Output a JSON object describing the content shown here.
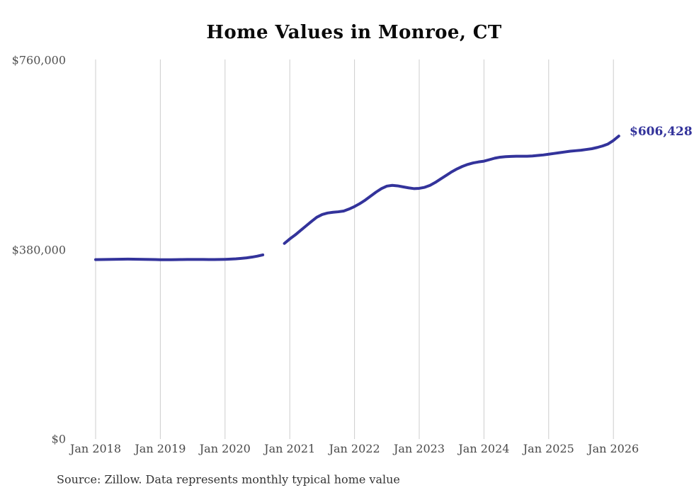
{
  "chart_data": {
    "type": "line",
    "title": "Home Values in Monroe, CT",
    "source_note": "Source: Zillow. Data represents monthly typical home value",
    "end_label": "$606,428",
    "end_value": 606428,
    "line_color": "#33339b",
    "grid_color": "#cccccc",
    "background_color": "#ffffff",
    "ylim": [
      0,
      760000
    ],
    "grid": "vertical-only",
    "legend_position": "none",
    "y_ticks": [
      {
        "label": "$760,000",
        "value": 760000
      },
      {
        "label": "$380,000",
        "value": 380000
      },
      {
        "label": "$0",
        "value": 0
      }
    ],
    "x_ticks": [
      {
        "label": "Jan 2018",
        "month_index": 0
      },
      {
        "label": "Jan 2019",
        "month_index": 12
      },
      {
        "label": "Jan 2020",
        "month_index": 24
      },
      {
        "label": "Jan 2021",
        "month_index": 36
      },
      {
        "label": "Jan 2022",
        "month_index": 48
      },
      {
        "label": "Jan 2023",
        "month_index": 60
      },
      {
        "label": "Jan 2024",
        "month_index": 72
      },
      {
        "label": "Jan 2025",
        "month_index": 84
      },
      {
        "label": "Jan 2026",
        "month_index": 96
      }
    ],
    "series": [
      {
        "name": "Monthly typical home value",
        "start_month": "2018-01",
        "frequency": "monthly",
        "gap_months": [
          "2020-09",
          "2020-10",
          "2020-11"
        ],
        "values": [
          358500,
          358700,
          358900,
          359100,
          359300,
          359400,
          359500,
          359400,
          359200,
          359000,
          358800,
          358600,
          358400,
          358300,
          358400,
          358500,
          358700,
          358800,
          358900,
          358900,
          358800,
          358700,
          358700,
          358800,
          359100,
          359500,
          360100,
          361000,
          362100,
          363600,
          365500,
          368000,
          null,
          null,
          null,
          391000,
          400000,
          408000,
          417000,
          426000,
          435000,
          443500,
          449000,
          452000,
          453500,
          454500,
          456000,
          460000,
          465000,
          471000,
          478000,
          486000,
          494000,
          501000,
          506000,
          507500,
          506500,
          504500,
          502500,
          501000,
          501500,
          503500,
          507500,
          513500,
          520500,
          527500,
          534500,
          540500,
          545500,
          549500,
          552500,
          554500,
          556000,
          559000,
          562000,
          564000,
          565000,
          565500,
          566000,
          566000,
          566000,
          566500,
          567500,
          568500,
          570000,
          571500,
          573000,
          574500,
          576000,
          577000,
          578000,
          579500,
          581000,
          583500,
          586500,
          590500,
          597500,
          606428
        ]
      }
    ]
  }
}
